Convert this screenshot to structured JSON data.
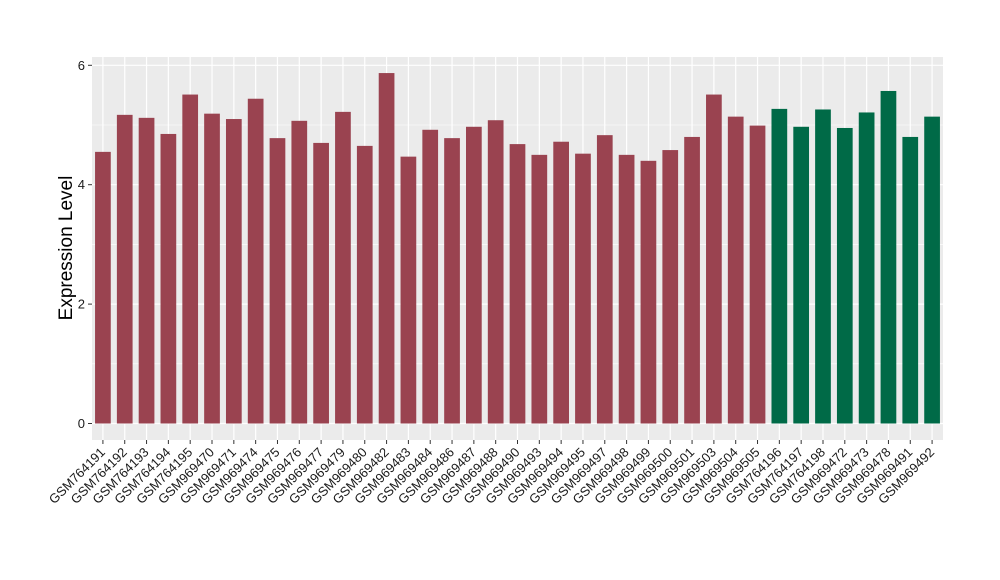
{
  "chart_data": {
    "type": "bar",
    "title": "",
    "xlabel": "",
    "ylabel": "Expression Level",
    "ylim": [
      0,
      6.1
    ],
    "yticks": [
      0,
      2,
      4,
      6
    ],
    "grid": true,
    "legend": "none",
    "colors": {
      "group_a": "#9a4350",
      "group_b": "#006a47",
      "panel_bg": "#ebebeb",
      "grid": "#ffffff"
    },
    "categories": [
      "GSM764191",
      "GSM764192",
      "GSM764193",
      "GSM764194",
      "GSM764195",
      "GSM969470",
      "GSM969471",
      "GSM969474",
      "GSM969475",
      "GSM969476",
      "GSM969477",
      "GSM969479",
      "GSM969480",
      "GSM969482",
      "GSM969483",
      "GSM969484",
      "GSM969486",
      "GSM969487",
      "GSM969488",
      "GSM969490",
      "GSM969493",
      "GSM969494",
      "GSM969495",
      "GSM969497",
      "GSM969498",
      "GSM969499",
      "GSM969500",
      "GSM969501",
      "GSM969503",
      "GSM969504",
      "GSM969505",
      "GSM764196",
      "GSM764197",
      "GSM764198",
      "GSM969472",
      "GSM969473",
      "GSM969478",
      "GSM969491",
      "GSM969492"
    ],
    "values": [
      4.55,
      5.17,
      5.12,
      4.85,
      5.51,
      5.19,
      5.1,
      5.44,
      4.78,
      5.07,
      4.7,
      5.22,
      4.65,
      5.87,
      4.47,
      4.92,
      4.78,
      4.97,
      5.08,
      4.68,
      4.5,
      4.72,
      4.52,
      4.83,
      4.5,
      4.4,
      4.58,
      4.8,
      5.51,
      5.14,
      4.99,
      5.27,
      4.97,
      5.26,
      4.95,
      5.21,
      5.57,
      4.8,
      5.14
    ],
    "groups": [
      "a",
      "a",
      "a",
      "a",
      "a",
      "a",
      "a",
      "a",
      "a",
      "a",
      "a",
      "a",
      "a",
      "a",
      "a",
      "a",
      "a",
      "a",
      "a",
      "a",
      "a",
      "a",
      "a",
      "a",
      "a",
      "a",
      "a",
      "a",
      "a",
      "a",
      "a",
      "b",
      "b",
      "b",
      "b",
      "b",
      "b",
      "b",
      "b"
    ]
  }
}
